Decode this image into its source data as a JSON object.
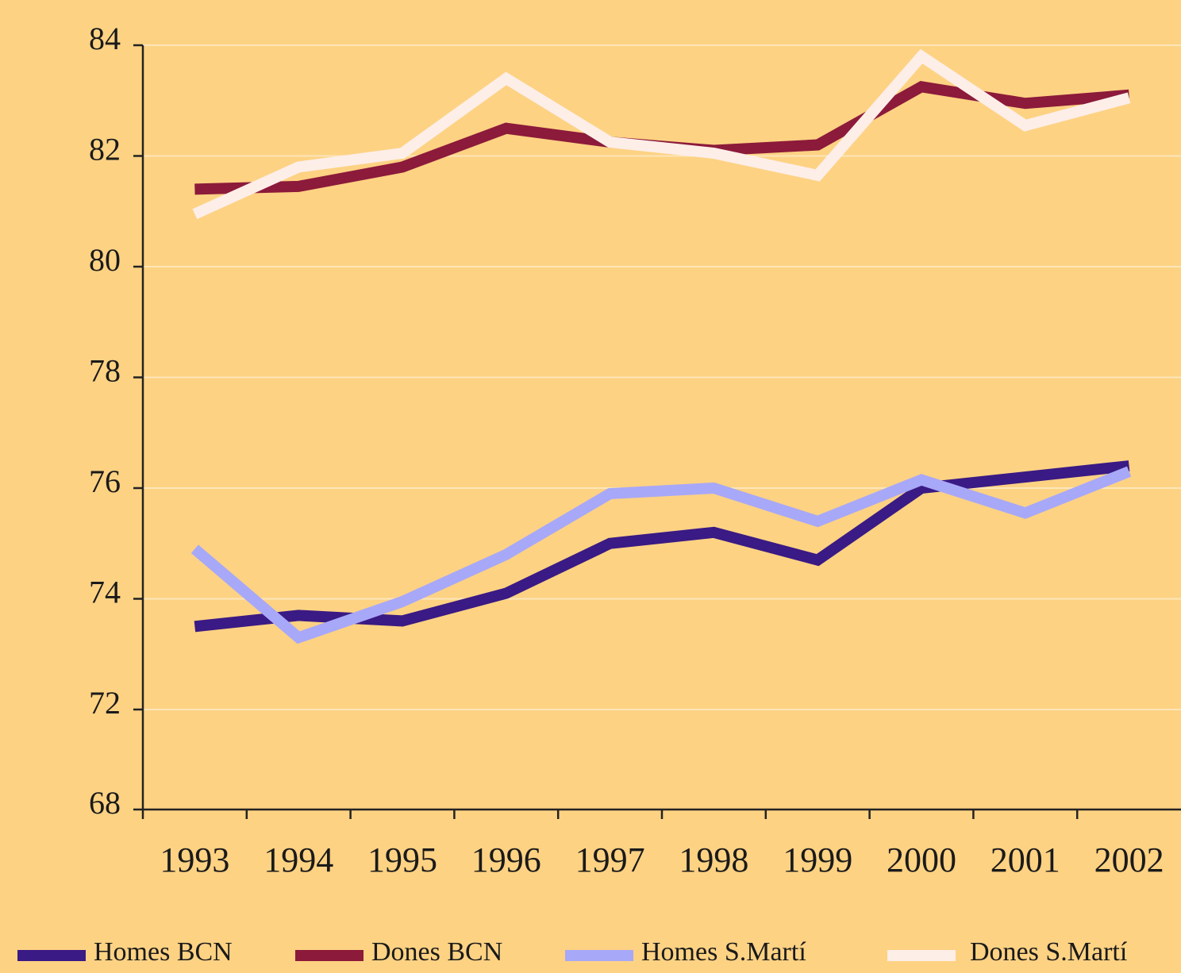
{
  "chart_data": {
    "type": "line",
    "categories": [
      "1993",
      "1994",
      "1995",
      "1996",
      "1997",
      "1998",
      "1999",
      "2000",
      "2001",
      "2002"
    ],
    "series": [
      {
        "name": "Homes BCN",
        "color": "#3a1a84",
        "values": [
          73.5,
          73.7,
          73.6,
          74.1,
          75.0,
          75.2,
          74.7,
          76.0,
          76.2,
          76.4
        ]
      },
      {
        "name": "Dones BCN",
        "color": "#8c1a3a",
        "values": [
          81.4,
          81.45,
          81.8,
          82.5,
          82.25,
          82.1,
          82.2,
          83.25,
          82.95,
          83.1
        ]
      },
      {
        "name": "Homes S.Martí",
        "color": "#a8a8f8",
        "values": [
          74.9,
          73.3,
          73.95,
          74.8,
          75.9,
          76.0,
          75.4,
          76.15,
          75.55,
          76.3
        ]
      },
      {
        "name": "Dones S.Martí",
        "color": "#fdeee8",
        "values": [
          80.95,
          81.8,
          82.05,
          83.4,
          82.25,
          82.05,
          81.65,
          83.8,
          82.55,
          83.05
        ]
      }
    ],
    "ylim": [
      68,
      84
    ],
    "yticks": [
      68,
      72,
      74,
      76,
      78,
      80,
      82,
      84
    ],
    "ybreak": [
      68,
      72
    ],
    "grid": true
  }
}
